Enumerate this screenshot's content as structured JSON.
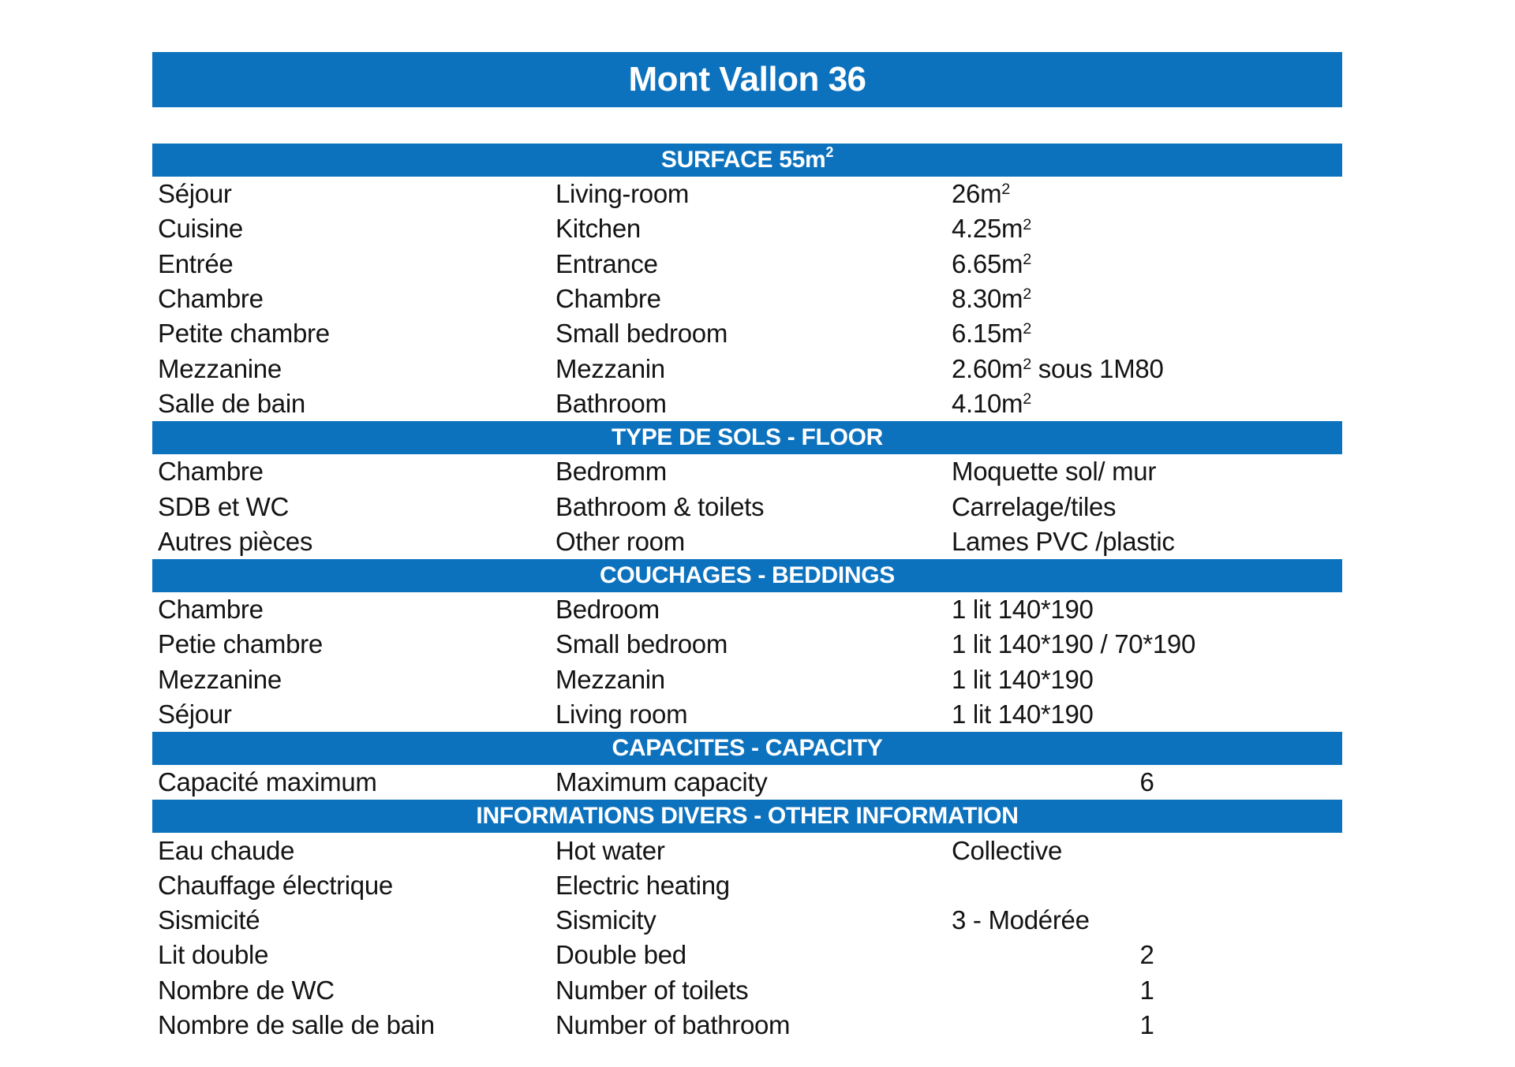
{
  "document": {
    "title": "Mont Vallon 36"
  },
  "theme": {
    "bar_color": "#0c72be",
    "bar_text_color": "#ffffff",
    "body_text_color": "#141414",
    "page_background": "#ffffff"
  },
  "sections": [
    {
      "header": "SURFACE 55m²",
      "rows": [
        {
          "fr": "Séjour",
          "en": "Living-room",
          "value": "26m²",
          "value_align": "left"
        },
        {
          "fr": "Cuisine",
          "en": "Kitchen",
          "value": "4.25m²",
          "value_align": "left"
        },
        {
          "fr": "Entrée",
          "en": "Entrance",
          "value": "6.65m²",
          "value_align": "left"
        },
        {
          "fr": "Chambre",
          "en": "Chambre",
          "value": "8.30m²",
          "value_align": "left"
        },
        {
          "fr": "Petite chambre",
          "en": "Small bedroom",
          "value": "6.15m²",
          "value_align": "left"
        },
        {
          "fr": "Mezzanine",
          "en": "Mezzanin",
          "value": "2.60m² sous 1M80",
          "value_align": "left"
        },
        {
          "fr": "Salle de bain",
          "en": "Bathroom",
          "value": "4.10m²",
          "value_align": "left"
        }
      ]
    },
    {
      "header": "TYPE DE SOLS - FLOOR",
      "rows": [
        {
          "fr": "Chambre",
          "en": "Bedromm",
          "value": "Moquette sol/ mur",
          "value_align": "left"
        },
        {
          "fr": "SDB et WC",
          "en": "Bathroom & toilets",
          "value": "Carrelage/tiles",
          "value_align": "left"
        },
        {
          "fr": "Autres pièces",
          "en": "Other room",
          "value": "Lames PVC /plastic",
          "value_align": "left"
        }
      ]
    },
    {
      "header": "COUCHAGES - BEDDINGS",
      "rows": [
        {
          "fr": "Chambre",
          "en": "Bedroom",
          "value": "1 lit 140*190",
          "value_align": "left"
        },
        {
          "fr": "Petie chambre",
          "en": "Small bedroom",
          "value": "1 lit 140*190 / 70*190",
          "value_align": "left"
        },
        {
          "fr": "Mezzanine",
          "en": "Mezzanin",
          "value": "1 lit 140*190",
          "value_align": "left"
        },
        {
          "fr": "Séjour",
          "en": "Living room",
          "value": "1 lit 140*190",
          "value_align": "left"
        }
      ]
    },
    {
      "header": "CAPACITES - CAPACITY",
      "rows": [
        {
          "fr": "Capacité maximum",
          "en": "Maximum capacity",
          "value": "6",
          "value_align": "center"
        }
      ]
    },
    {
      "header": "INFORMATIONS DIVERS - OTHER INFORMATION",
      "rows": [
        {
          "fr": "Eau chaude",
          "en": "Hot water",
          "value": "Collective",
          "value_align": "left"
        },
        {
          "fr": "Chauffage électrique",
          "en": "Electric heating",
          "value": "",
          "value_align": "left"
        },
        {
          "fr": "Sismicité",
          "en": "Sismicity",
          "value": "3 - Modérée",
          "value_align": "left"
        },
        {
          "fr": "Lit double",
          "en": "Double bed",
          "value": "2",
          "value_align": "center"
        },
        {
          "fr": "Nombre de WC",
          "en": "Number of toilets",
          "value": "1",
          "value_align": "center"
        },
        {
          "fr": "Nombre de salle de bain",
          "en": "Number of bathroom",
          "value": "1",
          "value_align": "center"
        }
      ]
    }
  ]
}
